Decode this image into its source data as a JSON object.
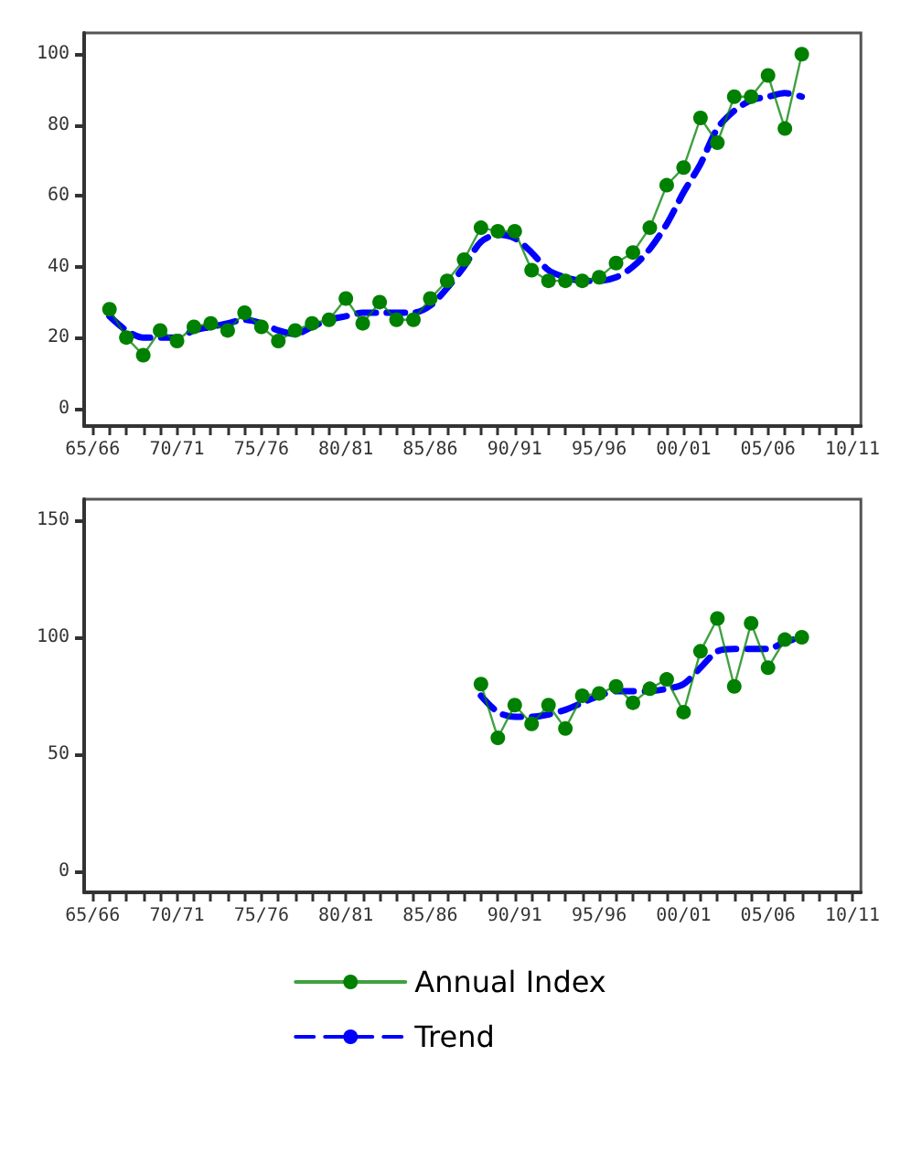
{
  "chart_data": [
    {
      "type": "line",
      "marker": "circle",
      "grid": false,
      "legend": false,
      "ylim": [
        -5,
        106
      ],
      "yticks": [
        0,
        20,
        40,
        60,
        80,
        100
      ],
      "categories": [
        "65/66",
        null,
        null,
        null,
        null,
        "70/71",
        null,
        null,
        null,
        null,
        "75/76",
        null,
        null,
        null,
        null,
        "80/81",
        null,
        null,
        null,
        null,
        "85/86",
        null,
        null,
        null,
        null,
        "90/91",
        null,
        null,
        null,
        null,
        "95/96",
        null,
        null,
        null,
        null,
        "00/01",
        null,
        null,
        null,
        null,
        "05/06",
        null,
        null,
        null,
        null,
        "10/11"
      ],
      "series": [
        {
          "color": "#008000",
          "line_style": "solid",
          "values": [
            null,
            28,
            20,
            15,
            22,
            19,
            23,
            24,
            22,
            27,
            23,
            19,
            22,
            24,
            25,
            31,
            24,
            30,
            25,
            25,
            31,
            36,
            42,
            51,
            50,
            50,
            39,
            36,
            36,
            36,
            37,
            41,
            44,
            51,
            63,
            68,
            82,
            75,
            88,
            88,
            94,
            79,
            100,
            null,
            null,
            null
          ]
        },
        {
          "color": "#0000ff",
          "marker": "none",
          "line_style": "dashed",
          "values": [
            null,
            26,
            22,
            20,
            20,
            20,
            22,
            23,
            24,
            25,
            24,
            22,
            21,
            23,
            25,
            26,
            27,
            27,
            27,
            27,
            29,
            34,
            40,
            47,
            49,
            48,
            44,
            39,
            37,
            36,
            36,
            37,
            40,
            45,
            52,
            61,
            69,
            79,
            84,
            87,
            88,
            89,
            88,
            null,
            null,
            null
          ]
        }
      ]
    },
    {
      "type": "line",
      "marker": "circle",
      "grid": false,
      "legend": "bottom",
      "ylim": [
        -9,
        159
      ],
      "yticks": [
        0,
        50,
        100,
        150
      ],
      "categories": [
        "65/66",
        null,
        null,
        null,
        null,
        "70/71",
        null,
        null,
        null,
        null,
        "75/76",
        null,
        null,
        null,
        null,
        "80/81",
        null,
        null,
        null,
        null,
        "85/86",
        null,
        null,
        null,
        null,
        "90/91",
        null,
        null,
        null,
        null,
        "95/96",
        null,
        null,
        null,
        null,
        "00/01",
        null,
        null,
        null,
        null,
        "05/06",
        null,
        null,
        null,
        null,
        "10/11"
      ],
      "series": [
        {
          "name": "Annual Index",
          "color": "#008000",
          "line_style": "solid",
          "values": [
            null,
            null,
            null,
            null,
            null,
            null,
            null,
            null,
            null,
            null,
            null,
            null,
            null,
            null,
            null,
            null,
            null,
            null,
            null,
            null,
            null,
            null,
            null,
            80,
            57,
            71,
            63,
            71,
            61,
            75,
            76,
            79,
            72,
            78,
            82,
            68,
            94,
            108,
            79,
            106,
            87,
            99,
            100,
            null,
            null,
            null
          ]
        },
        {
          "name": "Trend",
          "color": "#0000ff",
          "marker": "none",
          "line_style": "dashed",
          "values": [
            null,
            null,
            null,
            null,
            null,
            null,
            null,
            null,
            null,
            null,
            null,
            null,
            null,
            null,
            null,
            null,
            null,
            null,
            null,
            null,
            null,
            null,
            null,
            75,
            68,
            66,
            66,
            67,
            69,
            72,
            75,
            77,
            77,
            77,
            78,
            80,
            87,
            94,
            95,
            95,
            95,
            98,
            100,
            null,
            null,
            null
          ]
        }
      ]
    }
  ]
}
